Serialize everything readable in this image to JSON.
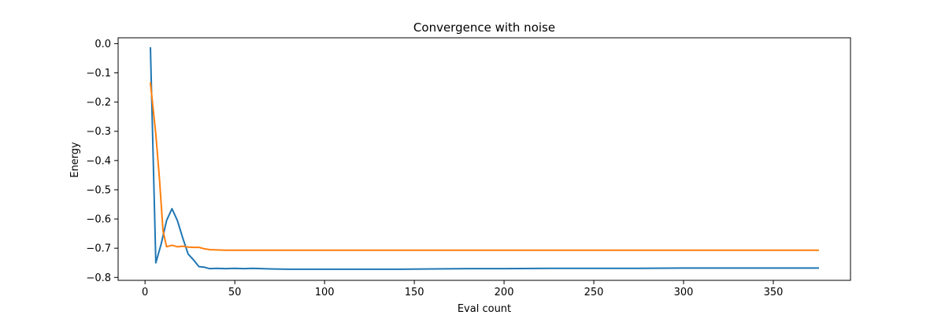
{
  "chart_data": {
    "type": "line",
    "title": "Convergence with noise",
    "xlabel": "Eval count",
    "ylabel": "Energy",
    "xlim": [
      -15,
      393
    ],
    "ylim": [
      -0.81,
      0.02
    ],
    "xticks": [
      0,
      50,
      100,
      150,
      200,
      250,
      300,
      350
    ],
    "yticks": [
      0.0,
      -0.1,
      -0.2,
      -0.3,
      -0.4,
      -0.5,
      -0.6,
      -0.7,
      -0.8
    ],
    "xtick_labels": [
      "0",
      "50",
      "100",
      "150",
      "200",
      "250",
      "300",
      "350"
    ],
    "ytick_labels": [
      "0.0",
      "−0.1",
      "−0.2",
      "−0.3",
      "−0.4",
      "−0.5",
      "−0.6",
      "−0.7",
      "−0.8"
    ],
    "grid": false,
    "legend": "none",
    "series": [
      {
        "color": "#1f77b4",
        "x": [
          3,
          6,
          9,
          12,
          15,
          18,
          21,
          24,
          27,
          30,
          33,
          36,
          40,
          45,
          50,
          55,
          60,
          70,
          80,
          90,
          100,
          120,
          140,
          160,
          180,
          200,
          225,
          250,
          275,
          300,
          325,
          350,
          375
        ],
        "y": [
          -0.015,
          -0.75,
          -0.685,
          -0.605,
          -0.565,
          -0.605,
          -0.665,
          -0.72,
          -0.74,
          -0.763,
          -0.765,
          -0.77,
          -0.769,
          -0.77,
          -0.769,
          -0.77,
          -0.769,
          -0.771,
          -0.772,
          -0.772,
          -0.772,
          -0.772,
          -0.772,
          -0.771,
          -0.77,
          -0.77,
          -0.769,
          -0.769,
          -0.769,
          -0.768,
          -0.768,
          -0.768,
          -0.768
        ]
      },
      {
        "color": "#ff7f0e",
        "x": [
          3,
          6,
          8,
          10,
          12,
          15,
          18,
          21,
          24,
          27,
          30,
          33,
          36,
          40,
          45,
          50,
          60,
          70,
          80,
          100,
          125,
          150,
          175,
          200,
          225,
          250,
          275,
          300,
          325,
          350,
          375
        ],
        "y": [
          -0.135,
          -0.31,
          -0.46,
          -0.64,
          -0.695,
          -0.69,
          -0.695,
          -0.693,
          -0.696,
          -0.697,
          -0.697,
          -0.702,
          -0.705,
          -0.706,
          -0.707,
          -0.707,
          -0.707,
          -0.707,
          -0.707,
          -0.707,
          -0.707,
          -0.707,
          -0.707,
          -0.707,
          -0.707,
          -0.707,
          -0.707,
          -0.707,
          -0.707,
          -0.707,
          -0.707
        ]
      }
    ]
  }
}
